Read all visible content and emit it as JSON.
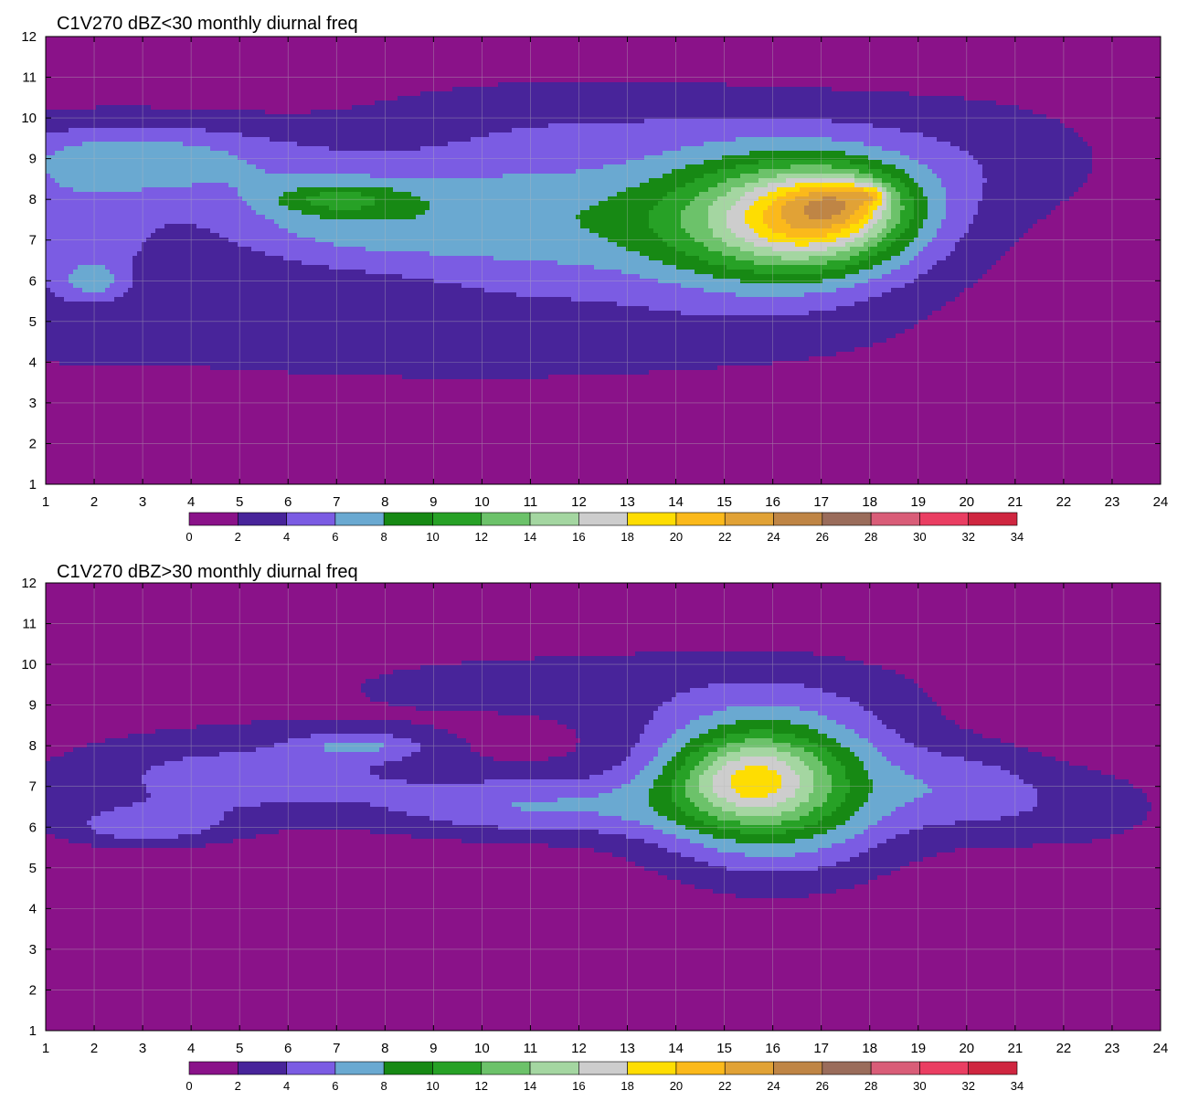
{
  "chart_data": [
    {
      "type": "heatmap",
      "subtype": "filled-contour",
      "title": "C1V270 dBZ<30 monthly diurnal freq",
      "x_ticks": [
        1,
        2,
        3,
        4,
        5,
        6,
        7,
        8,
        9,
        10,
        11,
        12,
        13,
        14,
        15,
        16,
        17,
        18,
        19,
        20,
        21,
        22,
        23,
        24
      ],
      "y_ticks": [
        1,
        2,
        3,
        4,
        5,
        6,
        7,
        8,
        9,
        10,
        11,
        12
      ],
      "xlim": [
        1,
        24
      ],
      "ylim": [
        1,
        12
      ],
      "grid": true,
      "colorbar": {
        "placement": "bottom",
        "levels": [
          0,
          2,
          4,
          6,
          8,
          10,
          12,
          14,
          16,
          18,
          20,
          22,
          24,
          26,
          28,
          30,
          32,
          34
        ],
        "tick_labels": [
          "0",
          "2",
          "4",
          "6",
          "8",
          "10",
          "12",
          "14",
          "16",
          "18",
          "20",
          "22",
          "24",
          "26",
          "28",
          "30",
          "32",
          "34"
        ],
        "colors": [
          "#8a1289",
          "#48249a",
          "#7b5ce3",
          "#6aa9d1",
          "#178914",
          "#27a126",
          "#6cc26a",
          "#a4d6a1",
          "#cdcdcd",
          "#fedd02",
          "#fbb91b",
          "#e1a236",
          "#bf8545",
          "#9a6c5b",
          "#d95d78",
          "#ea3e62",
          "#cf2640"
        ]
      },
      "background_value": 1,
      "features": [
        {
          "x": 3,
          "y": 9,
          "value": 5.5,
          "sx": 3.0,
          "sy": 0.9
        },
        {
          "x": 7,
          "y": 7.6,
          "value": 5.5,
          "sx": 3.0,
          "sy": 1.4
        },
        {
          "x": 1.5,
          "y": 7,
          "value": 4.0,
          "sx": 2.0,
          "sy": 2.0
        },
        {
          "x": 7,
          "y": 8,
          "value": 4.0,
          "sx": 1.3,
          "sy": 0.35
        },
        {
          "x": 2,
          "y": 6,
          "value": 3.5,
          "sx": 0.6,
          "sy": 0.4
        },
        {
          "x": 11,
          "y": 7.5,
          "value": 5.0,
          "sx": 3.0,
          "sy": 2.0
        },
        {
          "x": 16,
          "y": 7.5,
          "value": 13.0,
          "sx": 3.0,
          "sy": 1.8
        },
        {
          "x": 17,
          "y": 7.6,
          "value": 9.0,
          "sx": 1.7,
          "sy": 1.1
        },
        {
          "x": 17.5,
          "y": 8,
          "value": 5.0,
          "sx": 1.0,
          "sy": 0.6
        },
        {
          "x": 18,
          "y": 8.1,
          "value": 4.0,
          "sx": 0.3,
          "sy": 0.2
        },
        {
          "x": 9,
          "y": 4.5,
          "value": 2.0,
          "sx": 8.0,
          "sy": 1.0
        },
        {
          "x": 20,
          "y": 9,
          "value": 2.0,
          "sx": 3.0,
          "sy": 1.5
        },
        {
          "x": 12,
          "y": 10,
          "value": 1.5,
          "sx": 5.0,
          "sy": 1.0
        }
      ]
    },
    {
      "type": "heatmap",
      "subtype": "filled-contour",
      "title": "C1V270 dBZ>30 monthly diurnal freq",
      "x_ticks": [
        1,
        2,
        3,
        4,
        5,
        6,
        7,
        8,
        9,
        10,
        11,
        12,
        13,
        14,
        15,
        16,
        17,
        18,
        19,
        20,
        21,
        22,
        23,
        24
      ],
      "y_ticks": [
        1,
        2,
        3,
        4,
        5,
        6,
        7,
        8,
        9,
        10,
        11,
        12
      ],
      "xlim": [
        1,
        24
      ],
      "ylim": [
        1,
        12
      ],
      "grid": true,
      "colorbar": {
        "placement": "bottom",
        "levels": [
          0,
          2,
          4,
          6,
          8,
          10,
          12,
          14,
          16,
          18,
          20,
          22,
          24,
          26,
          28,
          30,
          32,
          34
        ],
        "tick_labels": [
          "0",
          "2",
          "4",
          "6",
          "8",
          "10",
          "12",
          "14",
          "16",
          "18",
          "20",
          "22",
          "24",
          "26",
          "28",
          "30",
          "32",
          "34"
        ],
        "colors": [
          "#8a1289",
          "#48249a",
          "#7b5ce3",
          "#6aa9d1",
          "#178914",
          "#27a126",
          "#6cc26a",
          "#a4d6a1",
          "#cdcdcd",
          "#fedd02",
          "#fbb91b",
          "#e1a236",
          "#bf8545",
          "#9a6c5b",
          "#d95d78",
          "#ea3e62",
          "#cf2640"
        ]
      },
      "background_value": 0.5,
      "features": [
        {
          "x": 5,
          "y": 7.2,
          "value": 4.5,
          "sx": 4.0,
          "sy": 1.1
        },
        {
          "x": 7.5,
          "y": 8,
          "value": 4.0,
          "sx": 1.4,
          "sy": 0.35
        },
        {
          "x": 11,
          "y": 6.5,
          "value": 5.0,
          "sx": 3.0,
          "sy": 0.8
        },
        {
          "x": 16,
          "y": 7,
          "value": 12.0,
          "sx": 2.6,
          "sy": 1.9
        },
        {
          "x": 15.5,
          "y": 7.2,
          "value": 7.0,
          "sx": 1.4,
          "sy": 1.0
        },
        {
          "x": 20,
          "y": 7,
          "value": 3.0,
          "sx": 1.5,
          "sy": 1.0
        },
        {
          "x": 3,
          "y": 6,
          "value": 4.0,
          "sx": 1.8,
          "sy": 0.5
        },
        {
          "x": 12,
          "y": 9.5,
          "value": 2.0,
          "sx": 8.0,
          "sy": 1.2
        },
        {
          "x": 22,
          "y": 6.5,
          "value": 2.5,
          "sx": 2.5,
          "sy": 1.2
        }
      ]
    }
  ]
}
